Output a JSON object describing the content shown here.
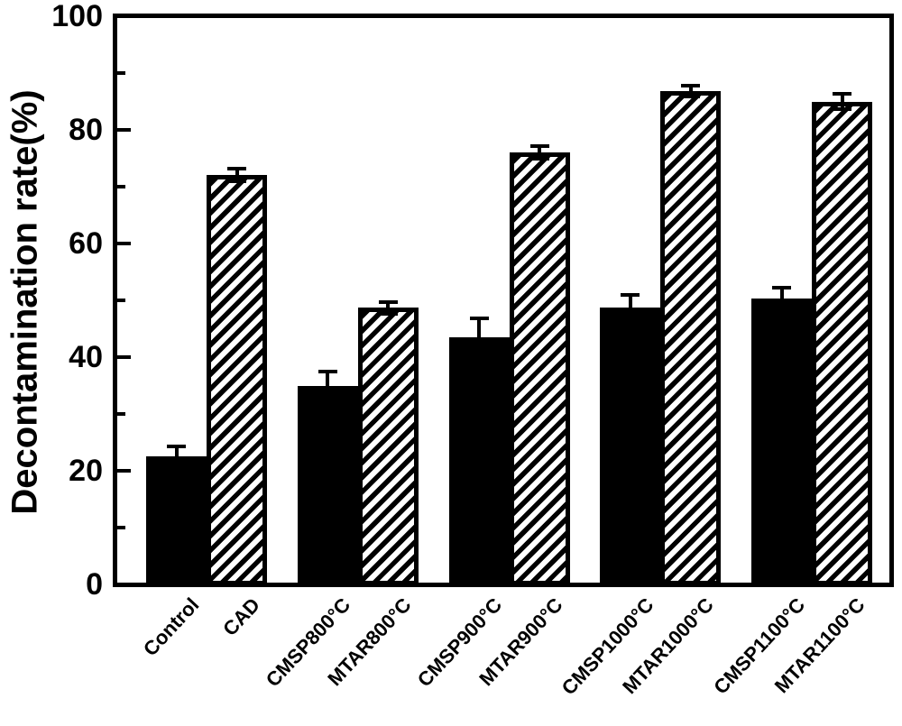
{
  "figure": {
    "background_color": "#ffffff",
    "ink_color": "#000000"
  },
  "chart_data": {
    "type": "bar",
    "title": "",
    "xlabel": "",
    "ylabel": "Decontamination rate(%)",
    "ylim": [
      0,
      100
    ],
    "yticks": [
      0,
      20,
      40,
      60,
      80,
      100
    ],
    "minor_yticks": [
      10,
      30,
      50,
      70,
      90
    ],
    "grid": false,
    "legend": null,
    "layout_note": "bars grouped in adjacent pairs of solid then hatched",
    "bars": [
      {
        "label": "Control",
        "value": 22.5,
        "error": 1.5,
        "style": "solid"
      },
      {
        "label": "CAD",
        "value": 72.0,
        "error": 0.8,
        "style": "hatched"
      },
      {
        "label": "CMSP800°C",
        "value": 35.0,
        "error": 2.2,
        "style": "solid"
      },
      {
        "label": "MTAR800°C",
        "value": 48.7,
        "error": 0.7,
        "style": "hatched"
      },
      {
        "label": "CMSP900°C",
        "value": 43.5,
        "error": 3.0,
        "style": "solid"
      },
      {
        "label": "MTAR900°C",
        "value": 76.0,
        "error": 0.8,
        "style": "hatched"
      },
      {
        "label": "CMSP1000°C",
        "value": 48.8,
        "error": 1.8,
        "style": "solid"
      },
      {
        "label": "MTAR1000°C",
        "value": 86.8,
        "error": 0.6,
        "style": "hatched"
      },
      {
        "label": "CMSP1100°C",
        "value": 50.3,
        "error": 1.6,
        "style": "solid"
      },
      {
        "label": "MTAR1100°C",
        "value": 85.0,
        "error": 1.1,
        "style": "hatched"
      }
    ]
  }
}
